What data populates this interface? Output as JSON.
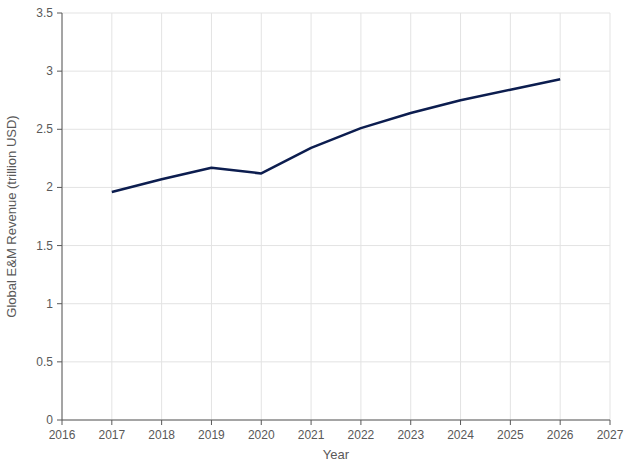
{
  "chart_data": {
    "type": "line",
    "x_label": "Year",
    "y_label": "Global E&M Revenue (trillion USD)",
    "x": [
      2017,
      2018,
      2019,
      2020,
      2021,
      2022,
      2023,
      2024,
      2025,
      2026
    ],
    "values": [
      1.96,
      2.07,
      2.17,
      2.12,
      2.34,
      2.51,
      2.64,
      2.75,
      2.84,
      2.93
    ],
    "color": "#0c1d4f",
    "xlim": [
      2016,
      2027
    ],
    "xticks": [
      2016,
      2017,
      2018,
      2019,
      2020,
      2021,
      2022,
      2023,
      2024,
      2025,
      2026,
      2027
    ],
    "ylim": [
      0,
      3.5
    ],
    "yticks": [
      0,
      0.5,
      1,
      1.5,
      2,
      2.5,
      3,
      3.5
    ],
    "grid": true
  }
}
